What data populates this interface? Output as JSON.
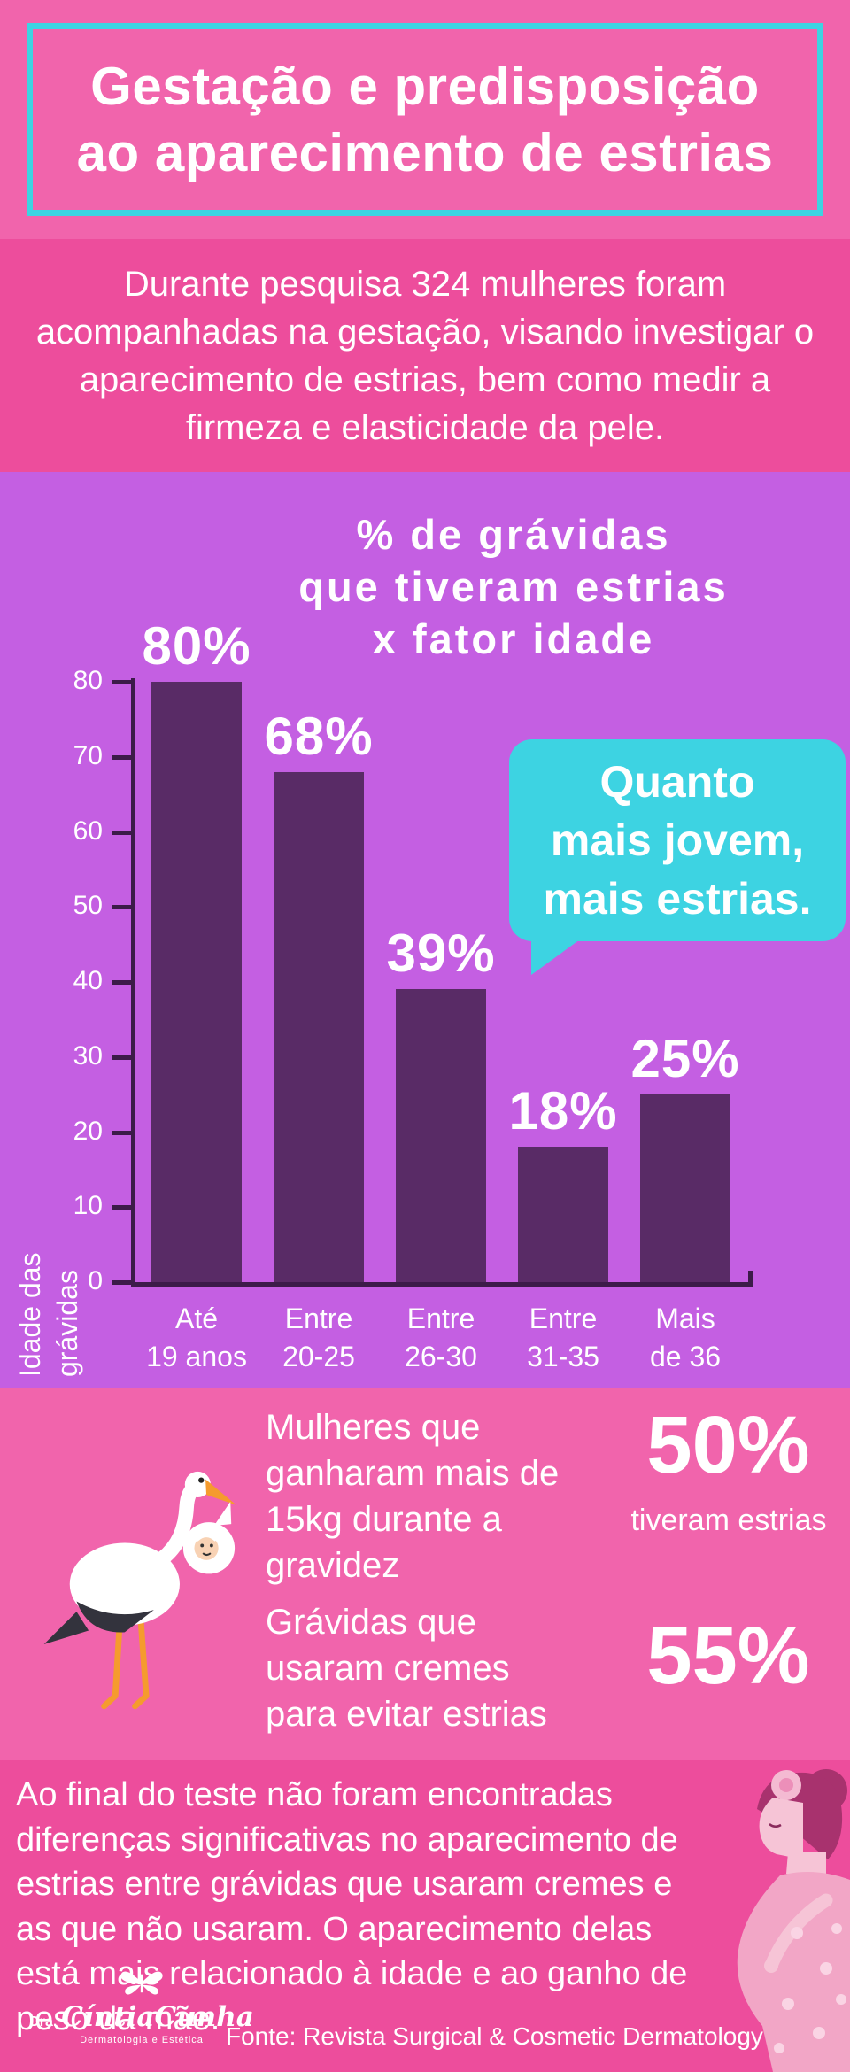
{
  "colors": {
    "pink": "#F164AC",
    "magenta": "#ED4D9C",
    "purple": "#C45FE2",
    "bar": "#592B66",
    "axis": "#3C1B49",
    "cyan": "#3DD3E2",
    "white": "#FFFFFF"
  },
  "header": {
    "title_line1": "Gestação e predisposição",
    "title_line2": "ao aparecimento de estrias"
  },
  "intro": {
    "text": "Durante pesquisa 324 mulheres foram acompanhadas na gestação, visando investigar o aparecimento de estrias, bem como medir a firmeza e elasticidade da pele."
  },
  "chart_data": {
    "type": "bar",
    "title": "% de grávidas que tiveram estrias x fator idade",
    "title_lines": [
      "% de grávidas",
      "que tiveram estrias",
      "x fator idade"
    ],
    "categories": [
      [
        "Até",
        "19 anos"
      ],
      [
        "Entre",
        "20-25"
      ],
      [
        "Entre",
        "26-30"
      ],
      [
        "Entre",
        "31-35"
      ],
      [
        "Mais",
        "de 36"
      ]
    ],
    "values": [
      80,
      68,
      39,
      18,
      25
    ],
    "value_labels": [
      "80%",
      "68%",
      "39%",
      "18%",
      "25%"
    ],
    "xlabel": "",
    "ylabel": "Idade das grávidas",
    "ylim": [
      0,
      80
    ],
    "yticks": [
      0,
      10,
      20,
      30,
      40,
      50,
      60,
      70,
      80
    ],
    "grid": false,
    "legend": "none",
    "bar_color": "#592B66",
    "annotation": {
      "lines": [
        "Quanto",
        "mais jovem,",
        "mais estrias."
      ],
      "bg": "#3DD3E2"
    }
  },
  "stats": [
    {
      "label_lines": [
        "Mulheres que",
        "ganharam mais de",
        "15kg durante a",
        "gravidez"
      ],
      "value": "50%",
      "note": "tiveram estrias"
    },
    {
      "label_lines": [
        "Grávidas que",
        "usaram cremes",
        "para evitar estrias"
      ],
      "value": "55%",
      "note": ""
    }
  ],
  "conclusion": {
    "text": "Ao final do teste não foram encontradas diferenças significativas no aparecimento de estrias entre grávidas que usaram cremes e as que não usaram. O aparecimento delas está mais relacionado à idade e ao ganho de peso da mãe."
  },
  "footer": {
    "logo": {
      "prefix": "Dra.",
      "name": "CíntiaCunha",
      "subtitle": "Dermatologia e Estética"
    },
    "source": "Fonte: Revista Surgical & Cosmetic Dermatology"
  }
}
